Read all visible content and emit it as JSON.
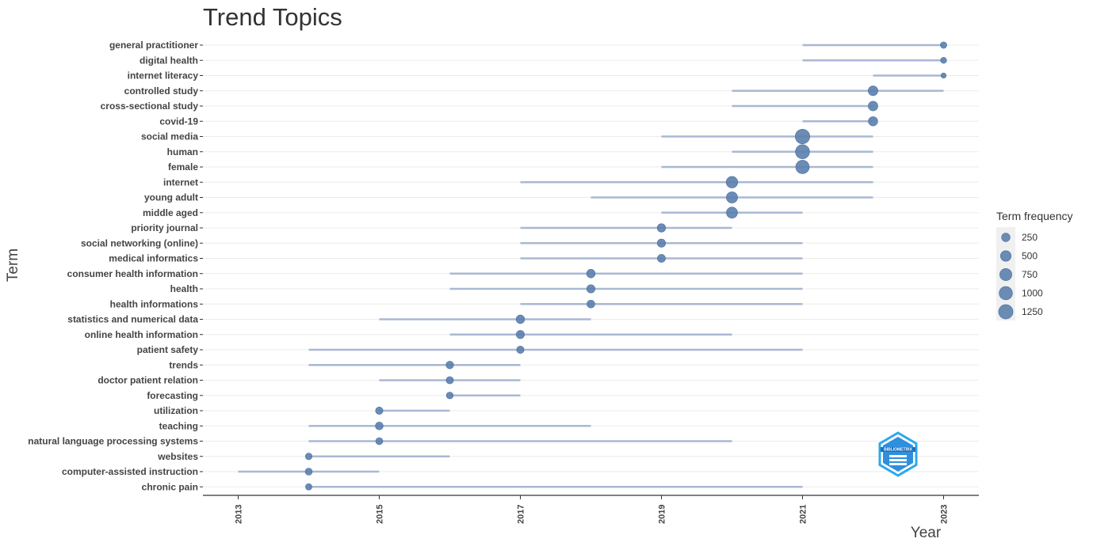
{
  "chart_data": {
    "type": "scatter",
    "title": "Trend Topics",
    "xlabel": "Year",
    "ylabel": "Term",
    "xlim": [
      2012.5,
      2023.5
    ],
    "x_ticks": [
      "2013",
      "2015",
      "2017",
      "2019",
      "2021",
      "2023"
    ],
    "grid": "horizontal",
    "legend": {
      "title": "Term frequency",
      "position": "right",
      "entries": [
        "250",
        "500",
        "750",
        "1000",
        "1250"
      ],
      "values": [
        250,
        500,
        750,
        1000,
        1250
      ]
    },
    "colors": {
      "point": "#5b80ad",
      "range": "#a9b8d3",
      "grid": "#ebebeb",
      "axis": "#000000"
    },
    "terms": [
      {
        "term": "general practitioner",
        "year": 2023,
        "q1": 2021,
        "q3": 2023,
        "freq": 120
      },
      {
        "term": "digital health",
        "year": 2023,
        "q1": 2021,
        "q3": 2023,
        "freq": 110
      },
      {
        "term": "internet literacy",
        "year": 2023,
        "q1": 2022,
        "q3": 2023,
        "freq": 100
      },
      {
        "term": "controlled study",
        "year": 2022,
        "q1": 2020,
        "q3": 2023,
        "freq": 380
      },
      {
        "term": "cross-sectional study",
        "year": 2022,
        "q1": 2020,
        "q3": 2022,
        "freq": 360
      },
      {
        "term": "covid-19",
        "year": 2022,
        "q1": 2021,
        "q3": 2022,
        "freq": 330
      },
      {
        "term": "social media",
        "year": 2021,
        "q1": 2019,
        "q3": 2022,
        "freq": 1300
      },
      {
        "term": "human",
        "year": 2021,
        "q1": 2020,
        "q3": 2022,
        "freq": 1200
      },
      {
        "term": "female",
        "year": 2021,
        "q1": 2019,
        "q3": 2022,
        "freq": 1050
      },
      {
        "term": "internet",
        "year": 2020,
        "q1": 2017,
        "q3": 2022,
        "freq": 650
      },
      {
        "term": "young adult",
        "year": 2020,
        "q1": 2018,
        "q3": 2022,
        "freq": 600
      },
      {
        "term": "middle aged",
        "year": 2020,
        "q1": 2019,
        "q3": 2021,
        "freq": 580
      },
      {
        "term": "priority journal",
        "year": 2019,
        "q1": 2017,
        "q3": 2020,
        "freq": 240
      },
      {
        "term": "social networking (online)",
        "year": 2019,
        "q1": 2017,
        "q3": 2021,
        "freq": 230
      },
      {
        "term": "medical informatics",
        "year": 2019,
        "q1": 2017,
        "q3": 2021,
        "freq": 210
      },
      {
        "term": "consumer health information",
        "year": 2018,
        "q1": 2016,
        "q3": 2021,
        "freq": 250
      },
      {
        "term": "health",
        "year": 2018,
        "q1": 2016,
        "q3": 2021,
        "freq": 230
      },
      {
        "term": "health informations",
        "year": 2018,
        "q1": 2017,
        "q3": 2021,
        "freq": 200
      },
      {
        "term": "statistics and numerical data",
        "year": 2017,
        "q1": 2015,
        "q3": 2018,
        "freq": 250
      },
      {
        "term": "online health information",
        "year": 2017,
        "q1": 2016,
        "q3": 2020,
        "freq": 220
      },
      {
        "term": "patient safety",
        "year": 2017,
        "q1": 2014,
        "q3": 2021,
        "freq": 170
      },
      {
        "term": "trends",
        "year": 2016,
        "q1": 2014,
        "q3": 2017,
        "freq": 180
      },
      {
        "term": "doctor patient relation",
        "year": 2016,
        "q1": 2015,
        "q3": 2017,
        "freq": 160
      },
      {
        "term": "forecasting",
        "year": 2016,
        "q1": 2016,
        "q3": 2017,
        "freq": 140
      },
      {
        "term": "utilization",
        "year": 2015,
        "q1": 2015,
        "q3": 2016,
        "freq": 170
      },
      {
        "term": "teaching",
        "year": 2015,
        "q1": 2014,
        "q3": 2018,
        "freq": 190
      },
      {
        "term": "natural language processing systems",
        "year": 2015,
        "q1": 2014,
        "q3": 2020,
        "freq": 150
      },
      {
        "term": "websites",
        "year": 2014,
        "q1": 2014,
        "q3": 2016,
        "freq": 130
      },
      {
        "term": "computer-assisted instruction",
        "year": 2014,
        "q1": 2013,
        "q3": 2015,
        "freq": 150
      },
      {
        "term": "chronic pain",
        "year": 2014,
        "q1": 2014,
        "q3": 2021,
        "freq": 120
      }
    ]
  },
  "logo": {
    "text": "BIBLIOMETRIX"
  }
}
